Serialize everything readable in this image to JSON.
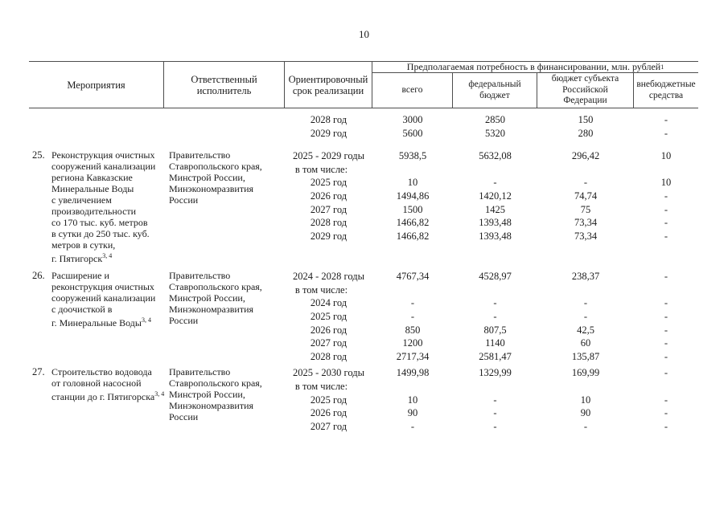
{
  "page": {
    "number": "10"
  },
  "table": {
    "header": {
      "activity": "Мероприятия",
      "executor": "Ответственный исполнитель",
      "period": "Ориентировочный срок реализации",
      "financing_title": "Предполагаемая потребность в финансировании, млн. рублей",
      "financing_footnote": "1",
      "columns": [
        "всего",
        "федеральный бюджет",
        "бюджет субъекта Российской Федерации",
        "внебюджетные средства"
      ]
    },
    "items": [
      {
        "number": "",
        "activity_lines": [],
        "footnote": "",
        "executor_lines": [],
        "rows": [
          {
            "period": "2028 год",
            "total": "3000",
            "federal": "2850",
            "regional": "150",
            "extra": "-"
          },
          {
            "period": "2029 год",
            "total": "5600",
            "federal": "5320",
            "regional": "280",
            "extra": "-"
          }
        ]
      },
      {
        "number": "25.",
        "activity_lines": [
          "Реконструкция очистных",
          "сооружений канализации",
          "региона Кавказские",
          "Минеральные Воды",
          "с увеличением",
          "производительности",
          "со 170 тыс. куб. метров",
          "в сутки до 250 тыс. куб.",
          "метров в сутки,",
          "г. Пятигорск"
        ],
        "footnote": "3, 4",
        "executor_lines": [
          "Правительство",
          "Ставропольского края,",
          "Минстрой России,",
          "Минэкономразвития",
          "России"
        ],
        "rows": [
          {
            "period": "2025 - 2029 годы",
            "total": "5938,5",
            "federal": "5632,08",
            "regional": "296,42",
            "extra": "10"
          },
          {
            "period": "в том числе:",
            "label": true
          },
          {
            "period": "2025 год",
            "total": "10",
            "federal": "-",
            "regional": "-",
            "extra": "10"
          },
          {
            "period": "2026 год",
            "total": "1494,86",
            "federal": "1420,12",
            "regional": "74,74",
            "extra": "-"
          },
          {
            "period": "2027 год",
            "total": "1500",
            "federal": "1425",
            "regional": "75",
            "extra": "-"
          },
          {
            "period": "2028 год",
            "total": "1466,82",
            "federal": "1393,48",
            "regional": "73,34",
            "extra": "-"
          },
          {
            "period": "2029 год",
            "total": "1466,82",
            "federal": "1393,48",
            "regional": "73,34",
            "extra": "-"
          }
        ]
      },
      {
        "number": "26.",
        "activity_lines": [
          "Расширение и",
          "реконструкция очистных",
          "сооружений канализации",
          "с доочисткой в",
          "г. Минеральные Воды"
        ],
        "footnote": "3, 4",
        "executor_lines": [
          "Правительство",
          "Ставропольского края,",
          "Минстрой России,",
          "Минэкономразвития",
          "России"
        ],
        "rows": [
          {
            "period": "2024 - 2028 годы",
            "total": "4767,34",
            "federal": "4528,97",
            "regional": "238,37",
            "extra": "-"
          },
          {
            "period": "в том числе:",
            "label": true
          },
          {
            "period": "2024 год",
            "total": "-",
            "federal": "-",
            "regional": "-",
            "extra": "-"
          },
          {
            "period": "2025 год",
            "total": "-",
            "federal": "-",
            "regional": "-",
            "extra": "-"
          },
          {
            "period": "2026 год",
            "total": "850",
            "federal": "807,5",
            "regional": "42,5",
            "extra": "-"
          },
          {
            "period": "2027 год",
            "total": "1200",
            "federal": "1140",
            "regional": "60",
            "extra": "-"
          },
          {
            "period": "2028 год",
            "total": "2717,34",
            "federal": "2581,47",
            "regional": "135,87",
            "extra": "-"
          }
        ]
      },
      {
        "number": "27.",
        "activity_lines": [
          "Строительство водовода",
          "от головной насосной",
          "станции до г. Пятигорска"
        ],
        "footnote": "3, 4",
        "executor_lines": [
          "Правительство",
          "Ставропольского края,",
          "Минстрой России,",
          "Минэкономразвития",
          "России"
        ],
        "rows": [
          {
            "period": "2025 - 2030 годы",
            "total": "1499,98",
            "federal": "1329,99",
            "regional": "169,99",
            "extra": "-"
          },
          {
            "period": "в том числе:",
            "label": true
          },
          {
            "period": "2025 год",
            "total": "10",
            "federal": "-",
            "regional": "10",
            "extra": "-"
          },
          {
            "period": "2026 год",
            "total": "90",
            "federal": "-",
            "regional": "90",
            "extra": "-"
          },
          {
            "period": "2027 год",
            "total": "-",
            "federal": "-",
            "regional": "-",
            "extra": "-"
          }
        ]
      }
    ]
  }
}
